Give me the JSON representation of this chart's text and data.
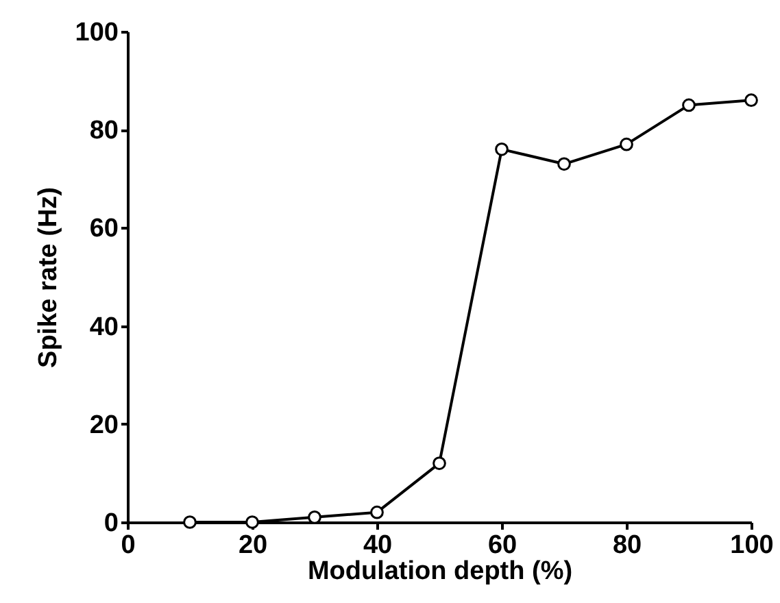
{
  "chart_data": {
    "type": "line",
    "xlabel": "Modulation depth (%)",
    "ylabel": "Spike rate (Hz)",
    "x": [
      10,
      20,
      30,
      40,
      50,
      60,
      70,
      80,
      90,
      100
    ],
    "series": [
      {
        "color": "#000000",
        "values": [
          0,
          0,
          1,
          2,
          12,
          76,
          73,
          77,
          85,
          86
        ]
      }
    ],
    "xlim": [
      0,
      100
    ],
    "xticks": [
      0,
      20,
      40,
      60,
      80,
      100
    ],
    "ylim": [
      0,
      100
    ],
    "yticks": [
      0,
      20,
      40,
      60,
      80,
      100
    ],
    "marker": "circle",
    "line_style": "solid",
    "grid": false
  }
}
